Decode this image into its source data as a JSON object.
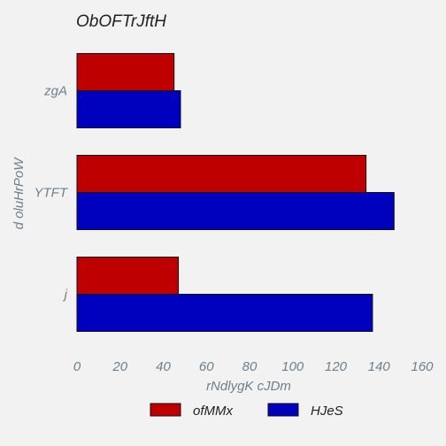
{
  "chart_data": {
    "type": "bar",
    "orientation": "horizontal",
    "title": "ObOFTrJftH",
    "xlabel": "rNdlygK cJDm",
    "ylabel": "d oluHrPoW",
    "categories": [
      "zgA",
      "YTFT",
      "j"
    ],
    "series": [
      {
        "name": "ofMMx",
        "color": "#bf0000",
        "values": [
          45,
          134,
          47
        ]
      },
      {
        "name": "HJeS",
        "color": "#0000bf",
        "values": [
          48,
          147,
          137
        ]
      }
    ],
    "xlim": [
      0,
      160
    ],
    "xticks": [
      "0",
      "20",
      "40",
      "60",
      "80",
      "100",
      "120",
      "140",
      "160"
    ],
    "grid": false,
    "legend": "bottom"
  }
}
